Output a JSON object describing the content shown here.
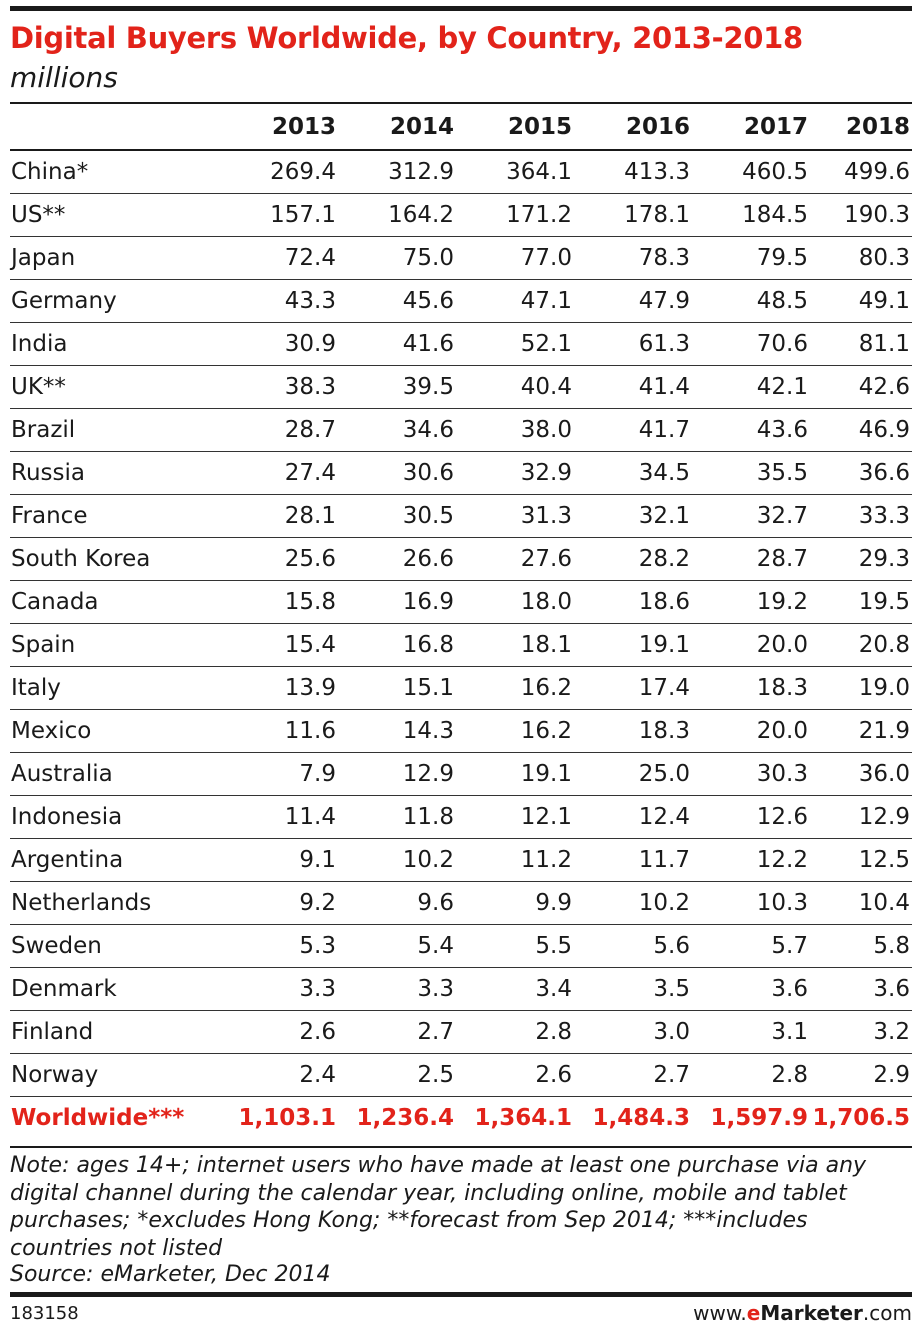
{
  "chart_data": {
    "type": "table",
    "title": "Digital Buyers Worldwide, by Country, 2013-2018",
    "subtitle": "millions",
    "columns": [
      "2013",
      "2014",
      "2015",
      "2016",
      "2017",
      "2018"
    ],
    "rows": [
      {
        "country": "China*",
        "values": [
          "269.4",
          "312.9",
          "364.1",
          "413.3",
          "460.5",
          "499.6"
        ]
      },
      {
        "country": "US**",
        "values": [
          "157.1",
          "164.2",
          "171.2",
          "178.1",
          "184.5",
          "190.3"
        ]
      },
      {
        "country": "Japan",
        "values": [
          "72.4",
          "75.0",
          "77.0",
          "78.3",
          "79.5",
          "80.3"
        ]
      },
      {
        "country": "Germany",
        "values": [
          "43.3",
          "45.6",
          "47.1",
          "47.9",
          "48.5",
          "49.1"
        ]
      },
      {
        "country": "India",
        "values": [
          "30.9",
          "41.6",
          "52.1",
          "61.3",
          "70.6",
          "81.1"
        ]
      },
      {
        "country": "UK**",
        "values": [
          "38.3",
          "39.5",
          "40.4",
          "41.4",
          "42.1",
          "42.6"
        ]
      },
      {
        "country": "Brazil",
        "values": [
          "28.7",
          "34.6",
          "38.0",
          "41.7",
          "43.6",
          "46.9"
        ]
      },
      {
        "country": "Russia",
        "values": [
          "27.4",
          "30.6",
          "32.9",
          "34.5",
          "35.5",
          "36.6"
        ]
      },
      {
        "country": "France",
        "values": [
          "28.1",
          "30.5",
          "31.3",
          "32.1",
          "32.7",
          "33.3"
        ]
      },
      {
        "country": "South Korea",
        "values": [
          "25.6",
          "26.6",
          "27.6",
          "28.2",
          "28.7",
          "29.3"
        ]
      },
      {
        "country": "Canada",
        "values": [
          "15.8",
          "16.9",
          "18.0",
          "18.6",
          "19.2",
          "19.5"
        ]
      },
      {
        "country": "Spain",
        "values": [
          "15.4",
          "16.8",
          "18.1",
          "19.1",
          "20.0",
          "20.8"
        ]
      },
      {
        "country": "Italy",
        "values": [
          "13.9",
          "15.1",
          "16.2",
          "17.4",
          "18.3",
          "19.0"
        ]
      },
      {
        "country": "Mexico",
        "values": [
          "11.6",
          "14.3",
          "16.2",
          "18.3",
          "20.0",
          "21.9"
        ]
      },
      {
        "country": "Australia",
        "values": [
          "7.9",
          "12.9",
          "19.1",
          "25.0",
          "30.3",
          "36.0"
        ]
      },
      {
        "country": "Indonesia",
        "values": [
          "11.4",
          "11.8",
          "12.1",
          "12.4",
          "12.6",
          "12.9"
        ]
      },
      {
        "country": "Argentina",
        "values": [
          "9.1",
          "10.2",
          "11.2",
          "11.7",
          "12.2",
          "12.5"
        ]
      },
      {
        "country": "Netherlands",
        "values": [
          "9.2",
          "9.6",
          "9.9",
          "10.2",
          "10.3",
          "10.4"
        ]
      },
      {
        "country": "Sweden",
        "values": [
          "5.3",
          "5.4",
          "5.5",
          "5.6",
          "5.7",
          "5.8"
        ]
      },
      {
        "country": "Denmark",
        "values": [
          "3.3",
          "3.3",
          "3.4",
          "3.5",
          "3.6",
          "3.6"
        ]
      },
      {
        "country": "Finland",
        "values": [
          "2.6",
          "2.7",
          "2.8",
          "3.0",
          "3.1",
          "3.2"
        ]
      },
      {
        "country": "Norway",
        "values": [
          "2.4",
          "2.5",
          "2.6",
          "2.7",
          "2.8",
          "2.9"
        ]
      }
    ],
    "total": {
      "country": "Worldwide***",
      "values": [
        "1,103.1",
        "1,236.4",
        "1,364.1",
        "1,484.3",
        "1,597.9",
        "1,706.5"
      ]
    },
    "note": "Note: ages 14+; internet users who have made at least one purchase via any digital channel during the calendar year, including online, mobile and tablet purchases; *excludes Hong Kong; **forecast from Sep 2014; ***includes countries not listed",
    "source": "Source: eMarketer, Dec 2014"
  },
  "footer": {
    "chart_id": "183158",
    "brand_prefix": "www.",
    "brand_e": "e",
    "brand_name": "Marketer",
    "brand_suffix": ".com"
  },
  "colors": {
    "accent_red": "#e2231a",
    "text": "#1a1a1a"
  }
}
